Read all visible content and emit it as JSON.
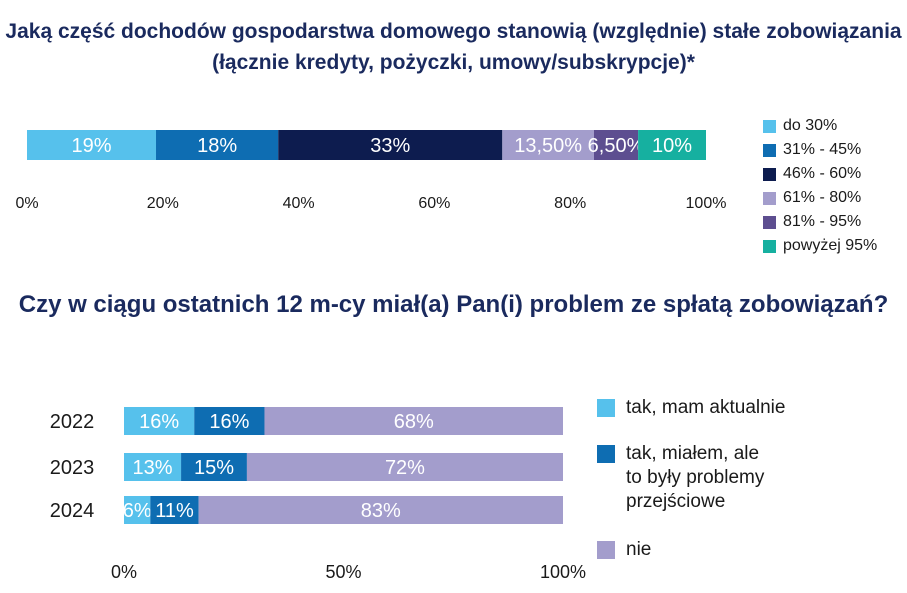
{
  "colors": {
    "do_30": "#56c1ec",
    "c31_45": "#0e6db2",
    "c46_60": "#0d1c4f",
    "c61_80": "#a39dcc",
    "c81_95": "#5d4e90",
    "powyzej_95": "#16b0a0",
    "title": "#1a2a5e"
  },
  "chart_data": [
    {
      "type": "bar",
      "orientation": "horizontal",
      "stacked": true,
      "title": "Jaką część dochodów gospodarstwa domowego stanowią (względnie) stałe zobowiązania (łącznie kredyty, pożyczki, umowy/subskrypcje)*",
      "xlim": [
        0,
        100
      ],
      "xticks": [
        "0%",
        "20%",
        "40%",
        "60%",
        "80%",
        "100%"
      ],
      "series": [
        {
          "name": "do 30%",
          "value": 19,
          "label": "19%",
          "color": "#56c1ec"
        },
        {
          "name": "31% - 45%",
          "value": 18,
          "label": "18%",
          "color": "#0e6db2"
        },
        {
          "name": "46% - 60%",
          "value": 33,
          "label": "33%",
          "color": "#0d1c4f"
        },
        {
          "name": "61% - 80%",
          "value": 13.5,
          "label": "13,50%",
          "color": "#a39dcc"
        },
        {
          "name": "81% - 95%",
          "value": 6.5,
          "label": "6,50%",
          "color": "#5d4e90"
        },
        {
          "name": "powyżej 95%",
          "value": 10,
          "label": "10%",
          "color": "#16b0a0"
        }
      ],
      "legend": "right"
    },
    {
      "type": "bar",
      "orientation": "horizontal",
      "stacked": true,
      "title": "Czy w ciągu ostatnich 12 m-cy miał(a) Pan(i) problem ze spłatą zobowiązań?",
      "categories": [
        "2022",
        "2023",
        "2024"
      ],
      "xlim": [
        0,
        100
      ],
      "xticks": [
        "0%",
        "50%",
        "100%"
      ],
      "series": [
        {
          "name": "tak, mam aktualnie",
          "values": [
            16,
            13,
            6
          ],
          "labels": [
            "16%",
            "13%",
            "6%"
          ],
          "color": "#56c1ec"
        },
        {
          "name": "tak, miałem, ale\nto były problemy\nprzejściowe",
          "values": [
            16,
            15,
            11
          ],
          "labels": [
            "16%",
            "15%",
            "11%"
          ],
          "color": "#0e6db2"
        },
        {
          "name": "nie",
          "values": [
            68,
            72,
            83
          ],
          "labels": [
            "68%",
            "72%",
            "83%"
          ],
          "color": "#a39dcc"
        }
      ],
      "legend": "right"
    }
  ]
}
